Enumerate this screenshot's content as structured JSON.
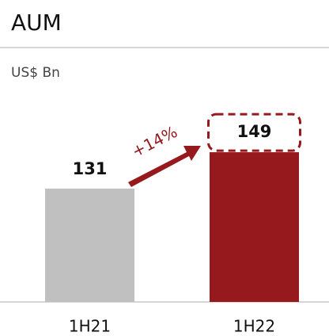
{
  "chart_data": {
    "type": "bar",
    "title": "AUM",
    "subtitle": "US$ Bn",
    "categories": [
      "1H21",
      "1H22"
    ],
    "values": [
      131,
      149
    ],
    "colors": [
      "#c0c0c0",
      "#96191e"
    ],
    "ylim": [
      75,
      160
    ],
    "annotation": "+14%"
  }
}
